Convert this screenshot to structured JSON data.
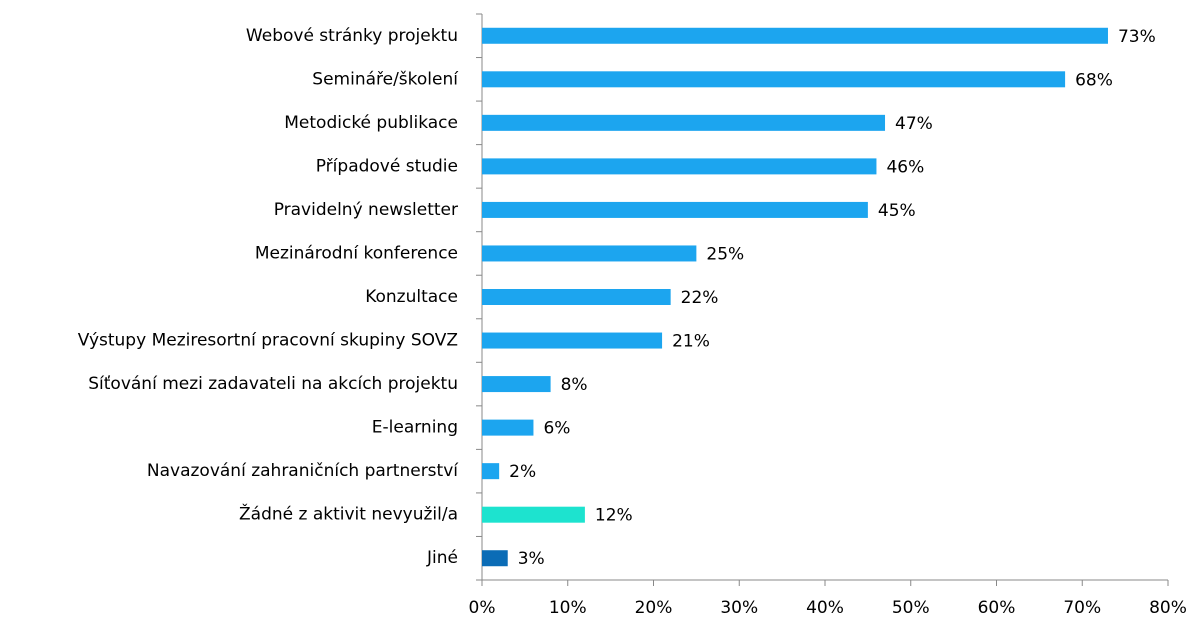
{
  "chart_data": {
    "type": "bar",
    "orientation": "horizontal",
    "categories": [
      "Webové stránky projektu",
      "Semináře/školení",
      "Metodické publikace",
      "Případové studie",
      "Pravidelný newsletter",
      "Mezinárodní konference",
      "Konzultace",
      "Výstupy Meziresortní pracovní skupiny SOVZ",
      "Síťování mezi zadavateli na akcích projektu",
      "E-learning",
      "Navazování zahraničních partnerství",
      "Žádné z aktivit nevyužil/a",
      "Jiné"
    ],
    "values": [
      73,
      68,
      47,
      46,
      45,
      25,
      22,
      21,
      8,
      6,
      2,
      12,
      3
    ],
    "value_labels": [
      "73%",
      "68%",
      "47%",
      "46%",
      "45%",
      "25%",
      "22%",
      "21%",
      "8%",
      "6%",
      "2%",
      "12%",
      "3%"
    ],
    "colors": [
      "#1ca5ef",
      "#1ca5ef",
      "#1ca5ef",
      "#1ca5ef",
      "#1ca5ef",
      "#1ca5ef",
      "#1ca5ef",
      "#1ca5ef",
      "#1ca5ef",
      "#1ca5ef",
      "#1ca5ef",
      "#1de3cf",
      "#0b6cb6"
    ],
    "xlim": [
      0,
      80
    ],
    "xticks": [
      {
        "value": 0,
        "label": "0%"
      },
      {
        "value": 10,
        "label": "10%"
      },
      {
        "value": 20,
        "label": "20%"
      },
      {
        "value": 30,
        "label": "30%"
      },
      {
        "value": 40,
        "label": "40%"
      },
      {
        "value": 50,
        "label": "50%"
      },
      {
        "value": 60,
        "label": "60%"
      },
      {
        "value": 70,
        "label": "70%"
      },
      {
        "value": 80,
        "label": "80%"
      }
    ],
    "grid": false
  }
}
